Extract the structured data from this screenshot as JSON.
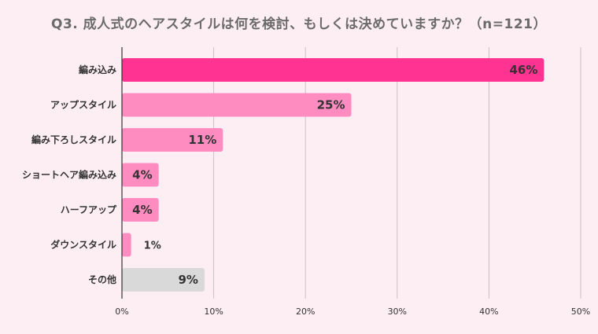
{
  "chart_data": {
    "type": "bar",
    "orientation": "horizontal",
    "title": "Q3. 成人式のヘアスタイルは何を検討、もしくは決めていますか？（n=121）",
    "categories": [
      "編み込み",
      "アップスタイル",
      "編み下ろしスタイル",
      "ショートヘア編み込み",
      "ハーフアップ",
      "ダウンスタイル",
      "その他"
    ],
    "values": [
      46,
      25,
      11,
      4,
      4,
      1,
      9
    ],
    "value_labels": [
      "46%",
      "25%",
      "11%",
      "4%",
      "4%",
      "1%",
      "9%"
    ],
    "xlim": [
      0,
      50
    ],
    "xticks": [
      0,
      10,
      20,
      30,
      40,
      50
    ],
    "xtick_labels": [
      "0%",
      "10%",
      "20%",
      "30%",
      "40%",
      "50%"
    ],
    "grid": "vertical",
    "bar_colors": [
      "#ff3392",
      "#ff8cc0",
      "#ff8cc0",
      "#ff8cc0",
      "#ff8cc0",
      "#ff8cc0",
      "#d9d9d9"
    ]
  }
}
